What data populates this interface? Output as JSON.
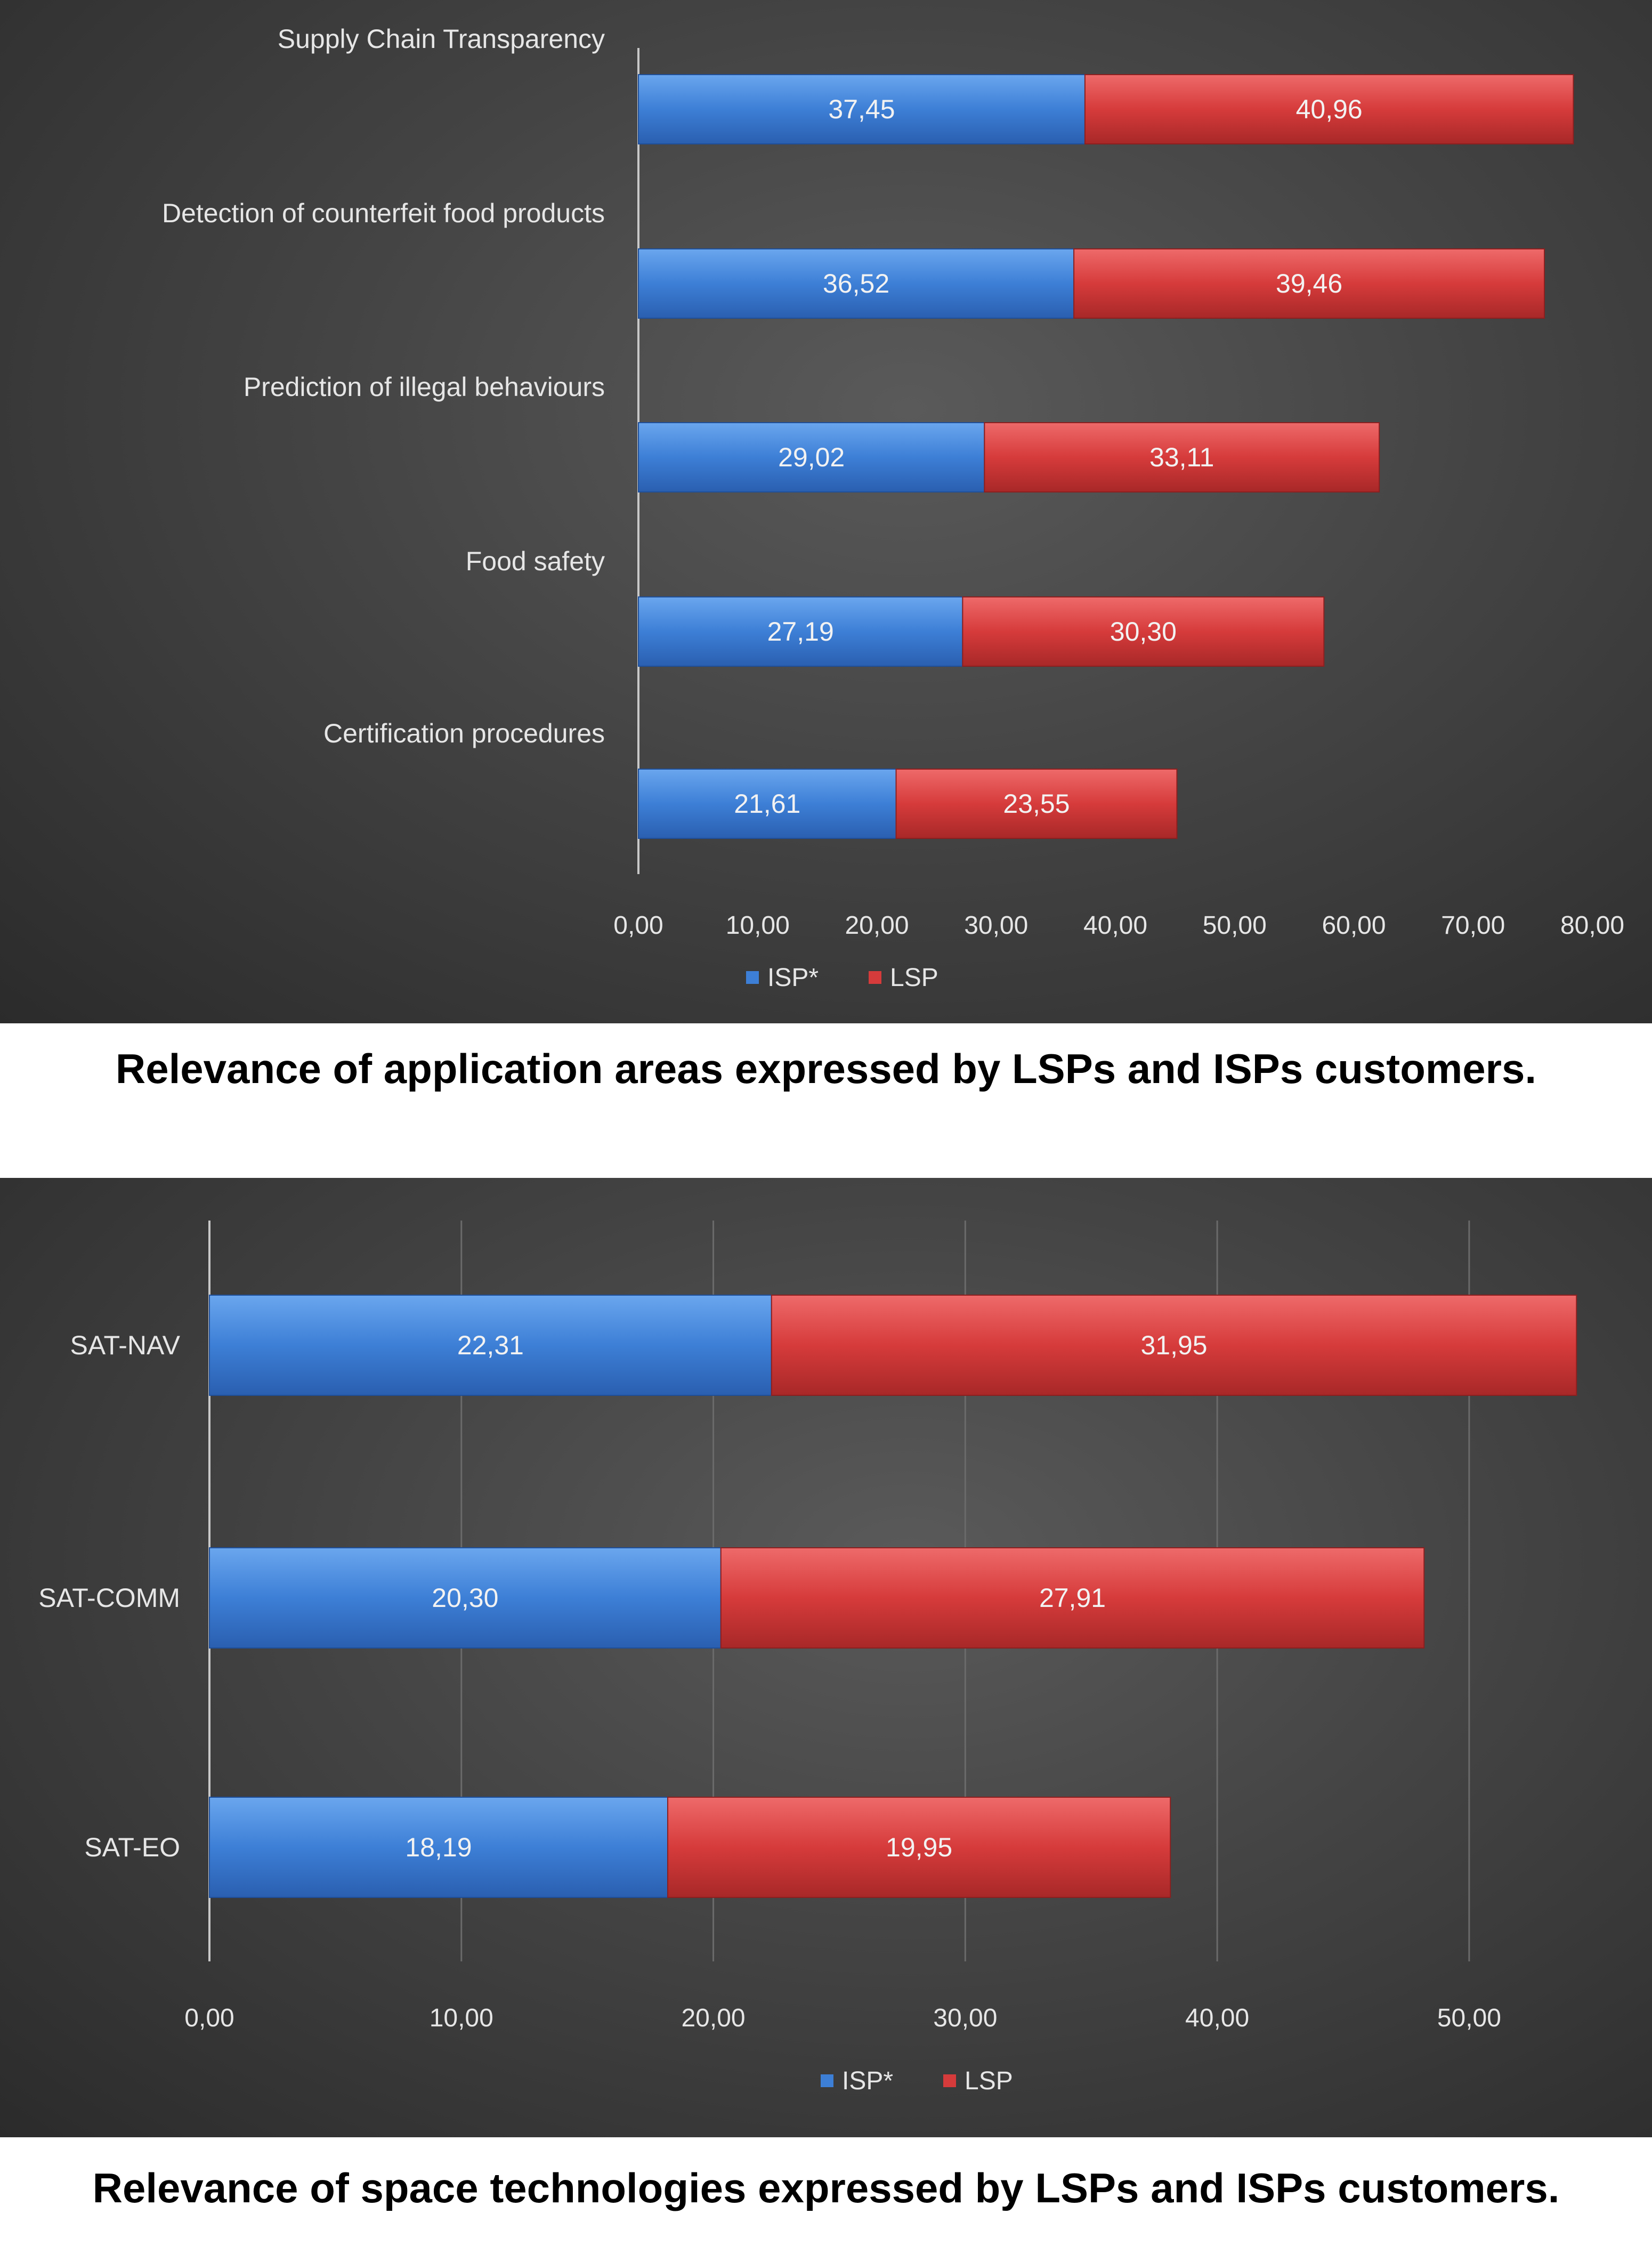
{
  "colors": {
    "isp": "#3d7fd6",
    "lsp": "#d63b3b",
    "grid": "#6a6a6a",
    "axis": "#c8c8c8"
  },
  "chart_data": [
    {
      "type": "bar",
      "orientation": "horizontal",
      "stacked": true,
      "categories": [
        "Supply Chain Transparency",
        "Detection of counterfeit food products",
        "Prediction of illegal behaviours",
        "Food safety",
        "Certification procedures"
      ],
      "series": [
        {
          "name": "ISP*",
          "values": [
            37.45,
            36.52,
            29.02,
            27.19,
            21.61
          ],
          "labels": [
            "37,45",
            "36,52",
            "29,02",
            "27,19",
            "21,61"
          ]
        },
        {
          "name": "LSP",
          "values": [
            40.96,
            39.46,
            33.11,
            30.3,
            23.55
          ],
          "labels": [
            "40,96",
            "39,46",
            "33,11",
            "30,30",
            "23,55"
          ]
        }
      ],
      "xlim": [
        0,
        80
      ],
      "ticks": [
        "0,00",
        "10,00",
        "20,00",
        "30,00",
        "40,00",
        "50,00",
        "60,00",
        "70,00",
        "80,00"
      ],
      "grid": false,
      "legend": "bottom",
      "category_label_position": "above-bar",
      "caption": "Relevance of application areas expressed by LSPs and ISPs customers."
    },
    {
      "type": "bar",
      "orientation": "horizontal",
      "stacked": true,
      "categories": [
        "SAT-NAV",
        "SAT-COMM",
        "SAT-EO"
      ],
      "series": [
        {
          "name": "ISP*",
          "values": [
            22.31,
            20.3,
            18.19
          ],
          "labels": [
            "22,31",
            "20,30",
            "18,19"
          ]
        },
        {
          "name": "LSP",
          "values": [
            31.95,
            27.91,
            19.95
          ],
          "labels": [
            "31,95",
            "27,91",
            "19,95"
          ]
        }
      ],
      "xlim": [
        0,
        54
      ],
      "ticks": [
        "0,00",
        "10,00",
        "20,00",
        "30,00",
        "40,00",
        "50,00"
      ],
      "grid": true,
      "legend": "bottom",
      "category_label_position": "left",
      "caption": "Relevance of space technologies expressed by LSPs and ISPs customers."
    }
  ]
}
